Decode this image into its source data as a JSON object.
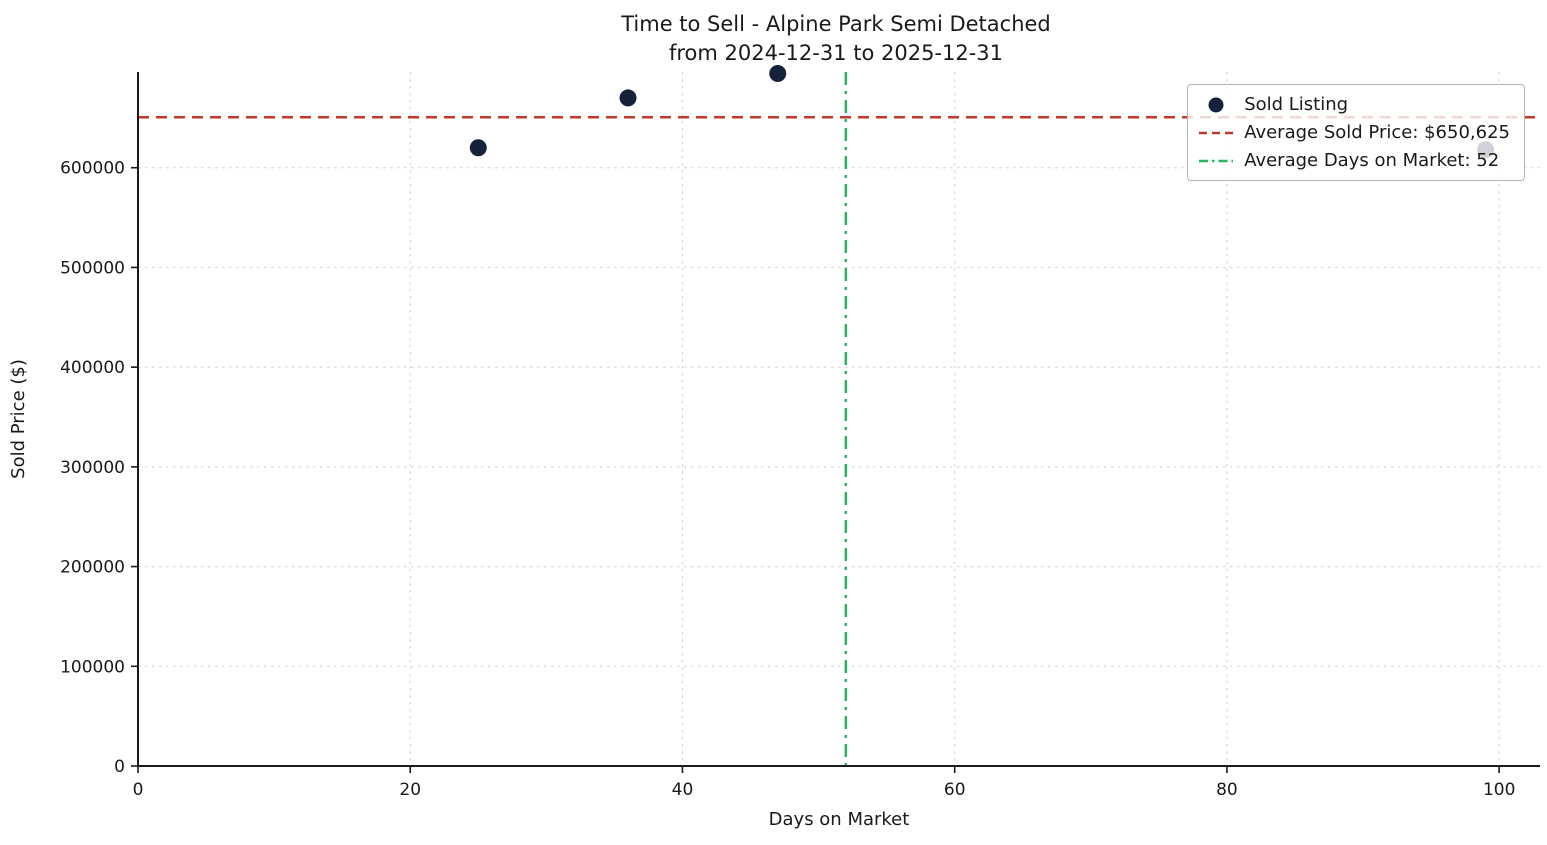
{
  "chart_data": {
    "type": "scatter",
    "title": "Time to Sell - Alpine Park Semi Detached",
    "subtitle": "from 2024-12-31 to 2025-12-31",
    "xlabel": "Days on Market",
    "ylabel": "Sold Price ($)",
    "xlim": [
      0,
      103
    ],
    "ylim": [
      0,
      696000
    ],
    "xticks": [
      0,
      20,
      40,
      60,
      80,
      100
    ],
    "yticks": [
      0,
      100000,
      200000,
      300000,
      400000,
      500000,
      600000
    ],
    "grid": true,
    "grid_color": "#cfcfcf",
    "point_color": "#152238",
    "points": [
      {
        "x": 25,
        "y": 620000
      },
      {
        "x": 36,
        "y": 670000
      },
      {
        "x": 47,
        "y": 694500
      },
      {
        "x": 99,
        "y": 618000
      }
    ],
    "reference_lines": [
      {
        "orientation": "horizontal",
        "value": 650625,
        "style": "dashed",
        "color": "#c0392b",
        "label": "Average Sold Price: $650,625"
      },
      {
        "orientation": "vertical",
        "value": 52,
        "style": "dashdot",
        "color": "#28b463",
        "label": "Average Days on Market: 52"
      }
    ],
    "legend": {
      "position": "upper right",
      "entries": [
        {
          "marker": "dot",
          "color": "#152238",
          "label": "Sold Listing"
        },
        {
          "marker": "dashed-line",
          "color": "#c0392b",
          "label": "Average Sold Price: $650,625"
        },
        {
          "marker": "dashdot-line",
          "color": "#28b463",
          "label": "Average Days on Market: 52"
        }
      ]
    }
  }
}
